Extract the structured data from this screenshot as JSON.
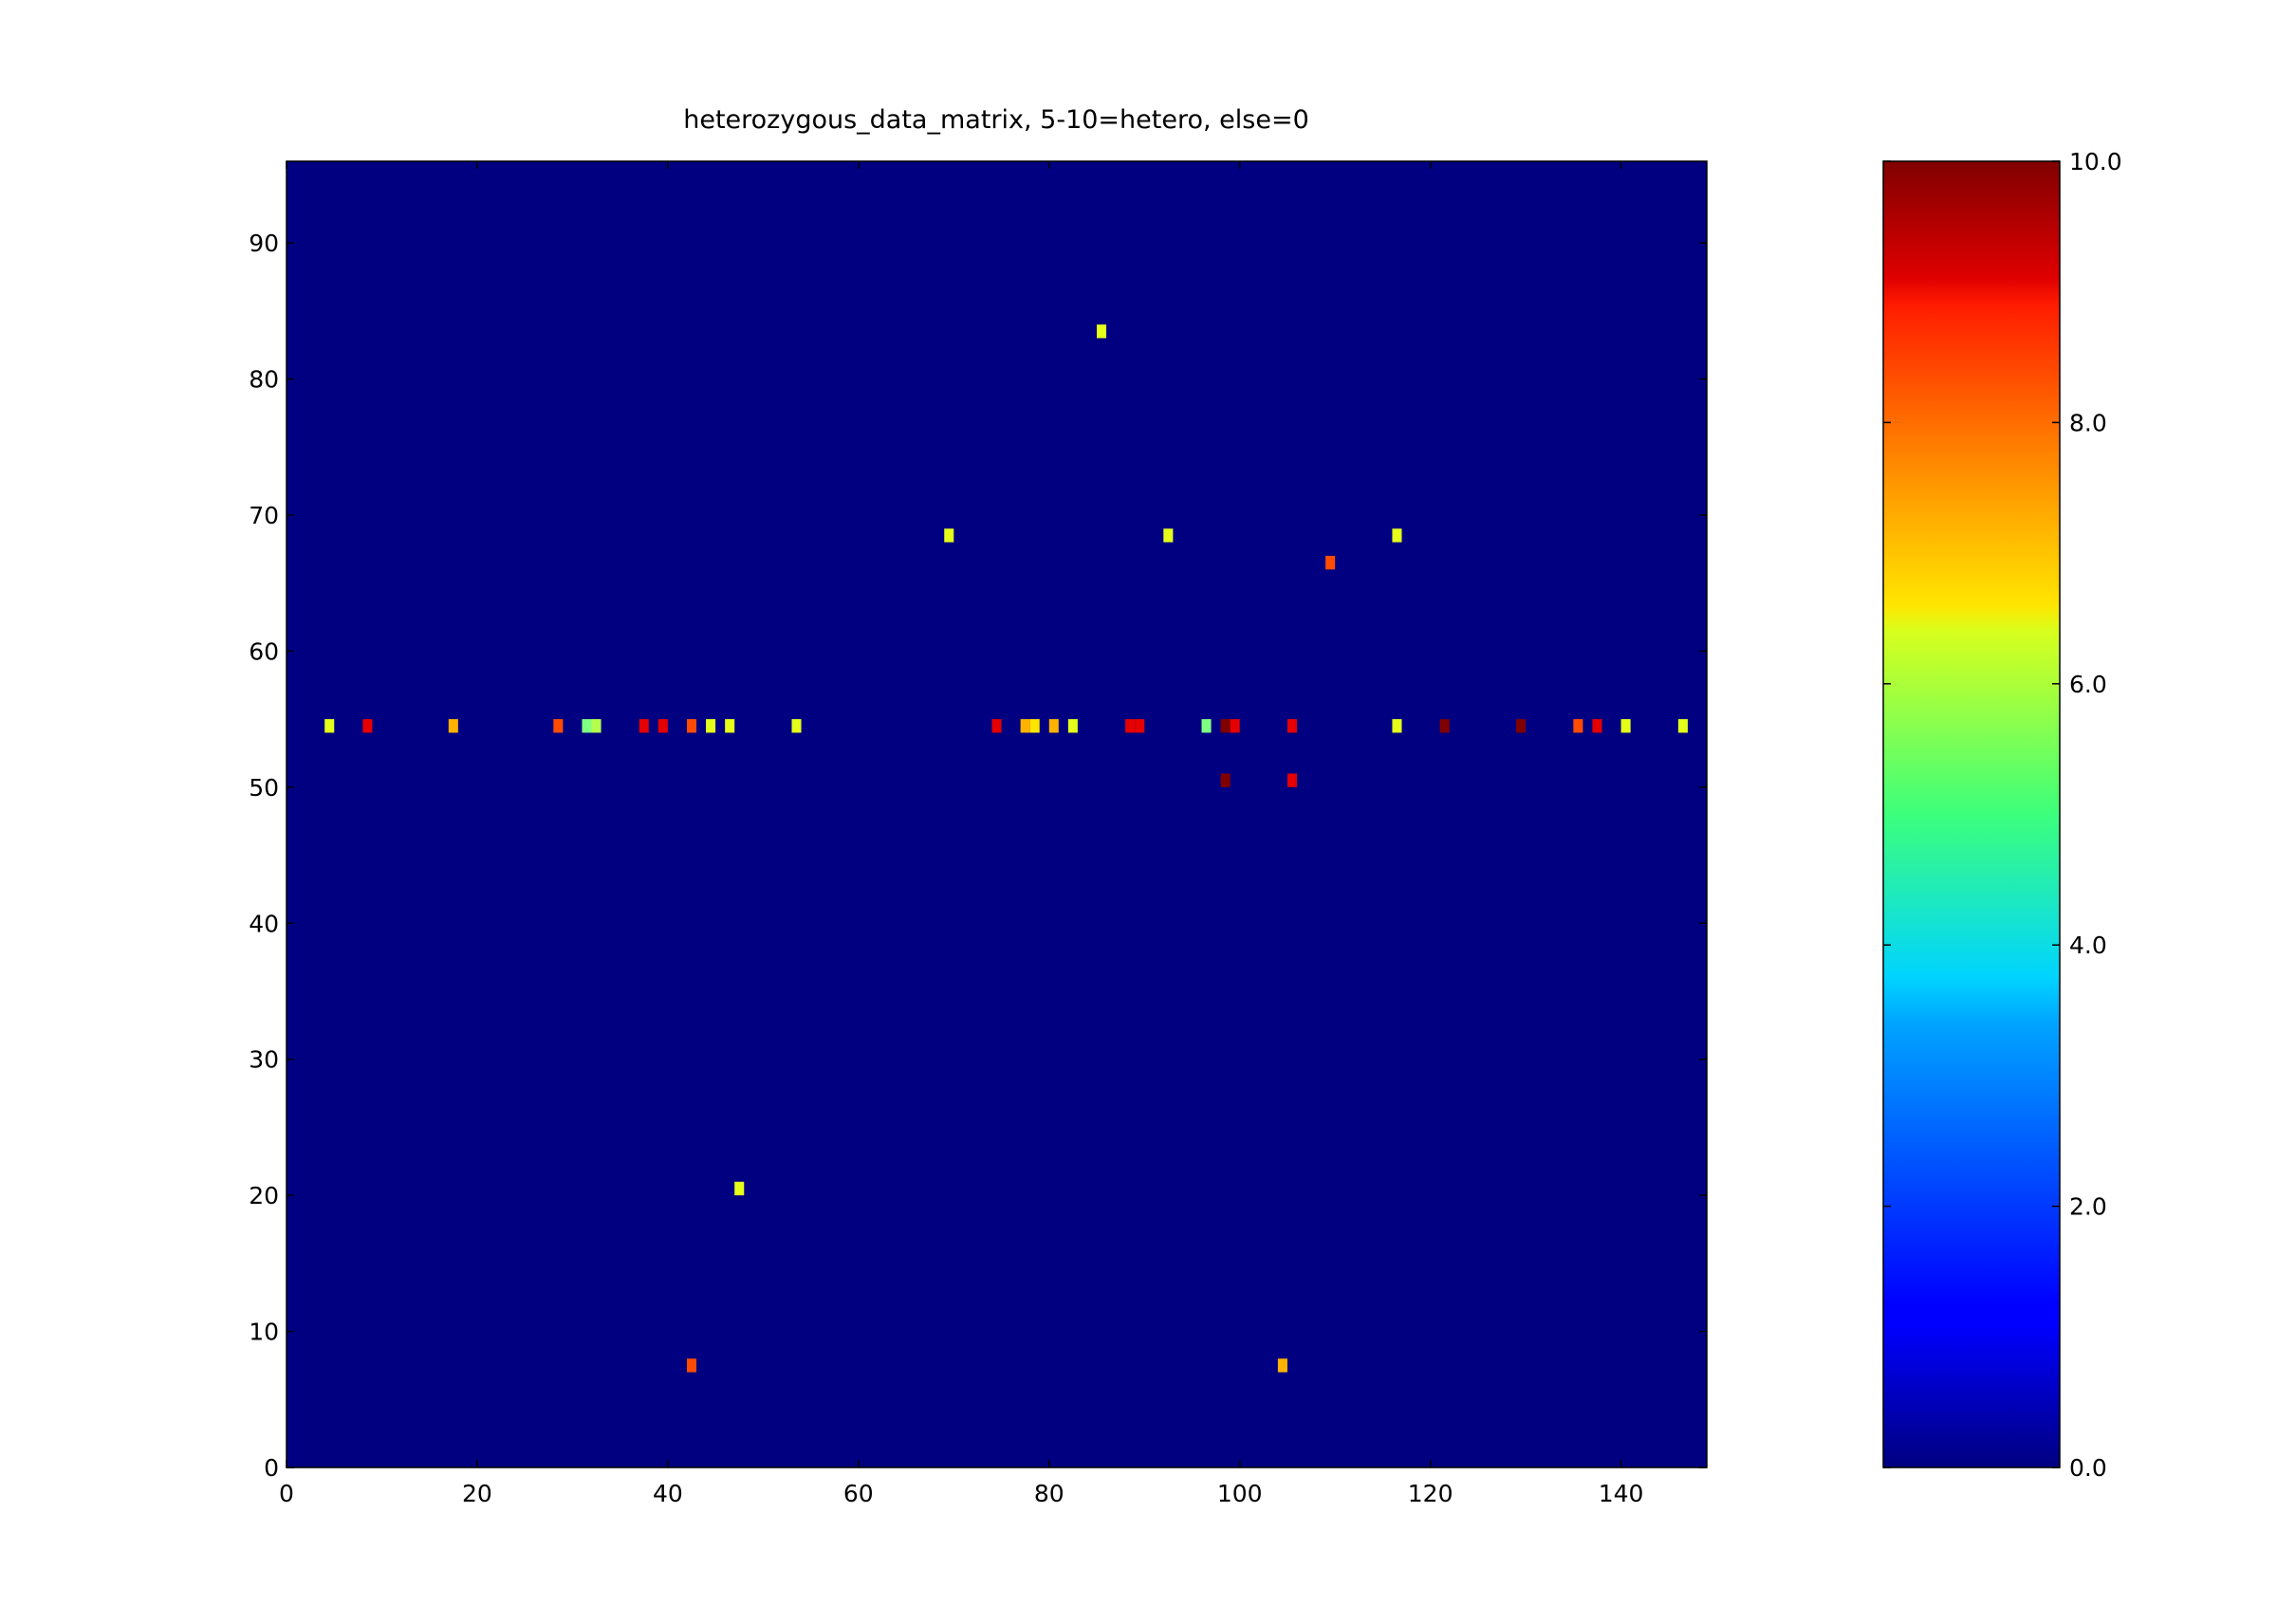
{
  "chart_data": {
    "type": "heatmap",
    "title": "heterozygous_data_matrix, 5-10=hetero, else=0",
    "xlabel": "",
    "ylabel": "",
    "xlim": [
      0,
      149
    ],
    "ylim": [
      0,
      96
    ],
    "x_ticks": [
      "0",
      "20",
      "40",
      "60",
      "80",
      "100",
      "120",
      "140"
    ],
    "y_ticks": [
      "0",
      "10",
      "20",
      "30",
      "40",
      "50",
      "60",
      "70",
      "80",
      "90"
    ],
    "background_value": 0,
    "colormap": "jet",
    "colorbar": {
      "range": [
        0,
        10
      ],
      "ticks": [
        "0.0",
        "2.0",
        "4.0",
        "6.0",
        "8.0",
        "10.0"
      ]
    },
    "grid": false,
    "cells": [
      {
        "x": 4,
        "y": 54,
        "v": 6
      },
      {
        "x": 8,
        "y": 54,
        "v": 9
      },
      {
        "x": 17,
        "y": 54,
        "v": 7
      },
      {
        "x": 28,
        "y": 54,
        "v": 8
      },
      {
        "x": 31,
        "y": 54,
        "v": 5
      },
      {
        "x": 32,
        "y": 54,
        "v": 5.5
      },
      {
        "x": 37,
        "y": 54,
        "v": 9
      },
      {
        "x": 39,
        "y": 54,
        "v": 9
      },
      {
        "x": 42,
        "y": 54,
        "v": 8
      },
      {
        "x": 44,
        "y": 54,
        "v": 6
      },
      {
        "x": 46,
        "y": 54,
        "v": 6
      },
      {
        "x": 53,
        "y": 54,
        "v": 6
      },
      {
        "x": 74,
        "y": 54,
        "v": 9
      },
      {
        "x": 77,
        "y": 54,
        "v": 7
      },
      {
        "x": 78,
        "y": 54,
        "v": 6.5
      },
      {
        "x": 80,
        "y": 54,
        "v": 7
      },
      {
        "x": 82,
        "y": 54,
        "v": 6
      },
      {
        "x": 88,
        "y": 54,
        "v": 9
      },
      {
        "x": 89,
        "y": 54,
        "v": 9
      },
      {
        "x": 96,
        "y": 54,
        "v": 5
      },
      {
        "x": 98,
        "y": 54,
        "v": 10
      },
      {
        "x": 99,
        "y": 54,
        "v": 9
      },
      {
        "x": 105,
        "y": 54,
        "v": 9
      },
      {
        "x": 116,
        "y": 54,
        "v": 6
      },
      {
        "x": 121,
        "y": 54,
        "v": 10
      },
      {
        "x": 129,
        "y": 54,
        "v": 10
      },
      {
        "x": 135,
        "y": 54,
        "v": 8
      },
      {
        "x": 137,
        "y": 54,
        "v": 9
      },
      {
        "x": 140,
        "y": 54,
        "v": 6
      },
      {
        "x": 146,
        "y": 54,
        "v": 6
      },
      {
        "x": 98,
        "y": 50,
        "v": 10
      },
      {
        "x": 105,
        "y": 50,
        "v": 9
      },
      {
        "x": 85,
        "y": 83,
        "v": 6
      },
      {
        "x": 69,
        "y": 68,
        "v": 6
      },
      {
        "x": 92,
        "y": 68,
        "v": 6
      },
      {
        "x": 116,
        "y": 68,
        "v": 6
      },
      {
        "x": 109,
        "y": 66,
        "v": 8
      },
      {
        "x": 47,
        "y": 20,
        "v": 6
      },
      {
        "x": 42,
        "y": 7,
        "v": 8
      },
      {
        "x": 104,
        "y": 7,
        "v": 7
      }
    ]
  }
}
